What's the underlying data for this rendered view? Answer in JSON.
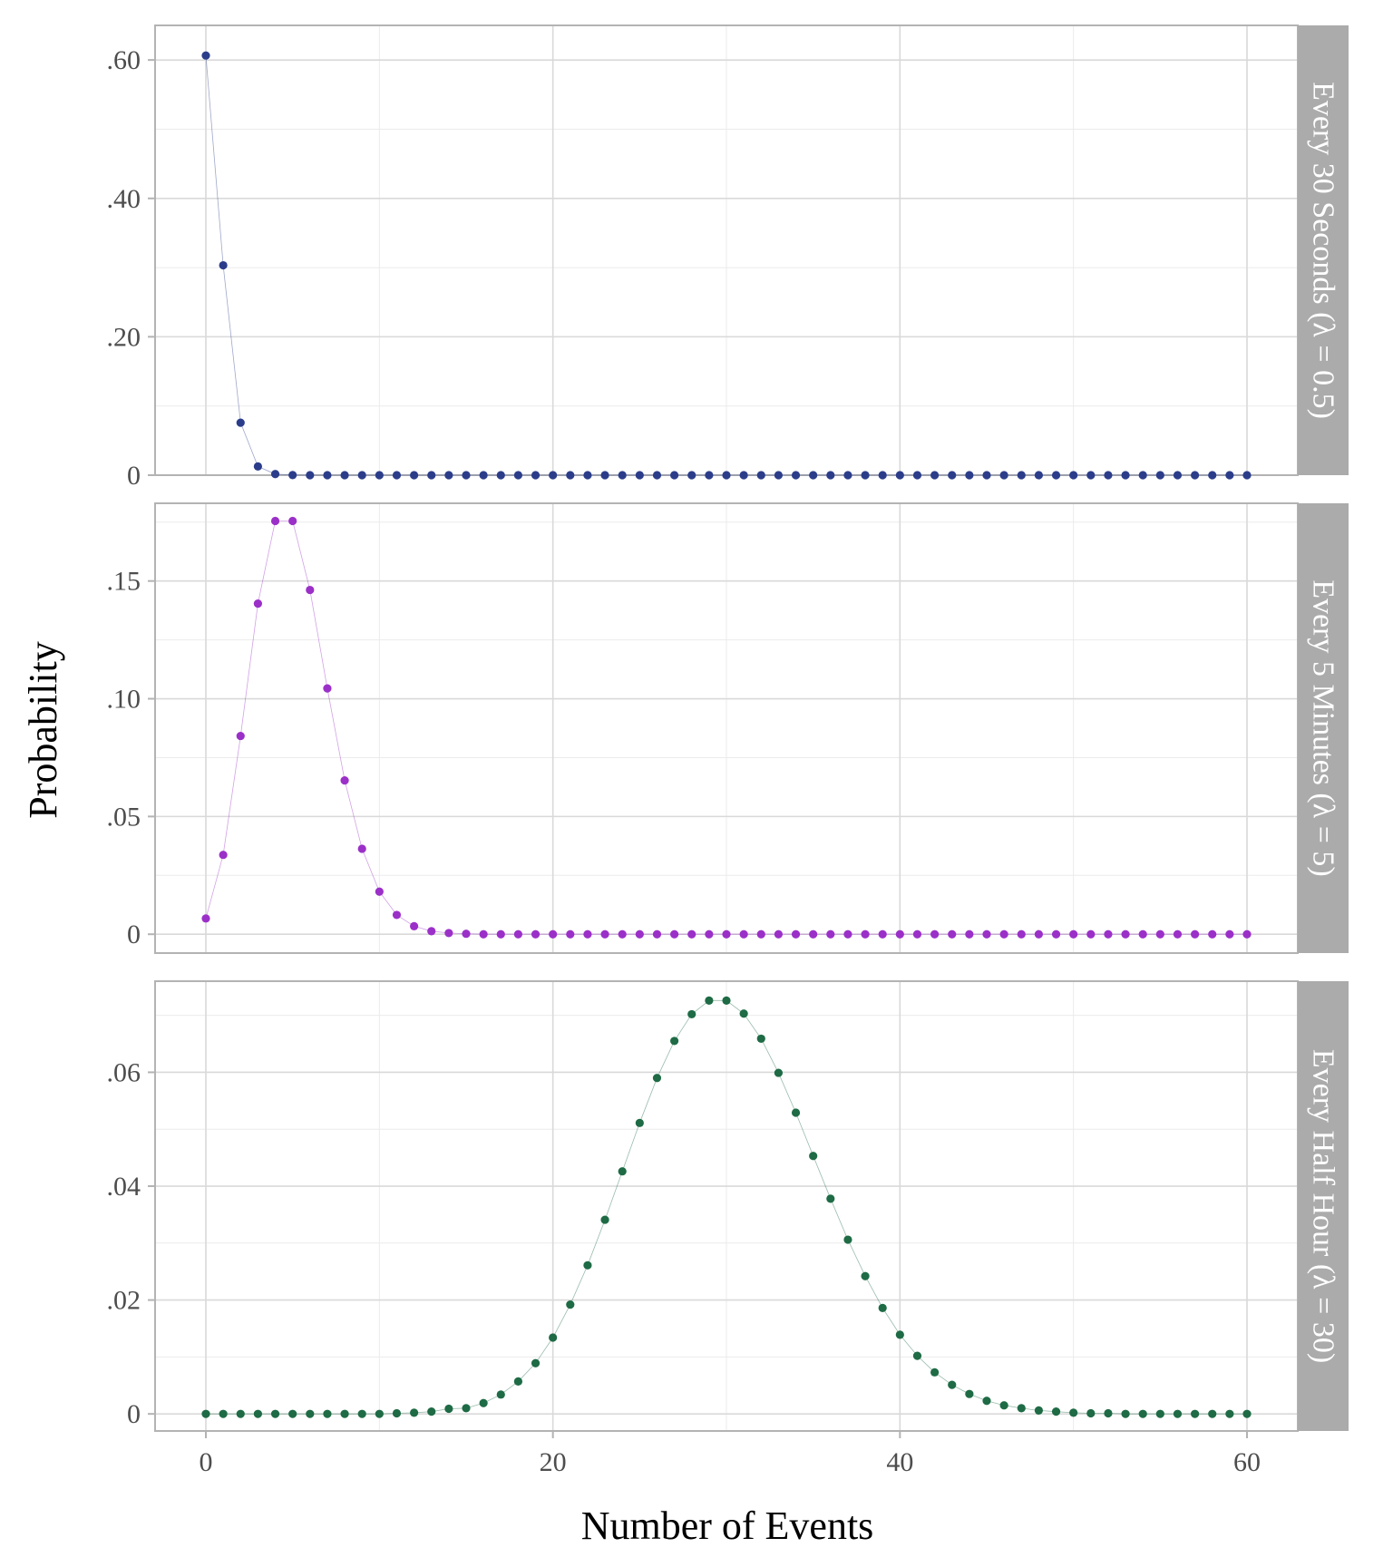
{
  "chart_data": {
    "type": "scatter",
    "xlabel": "Number of Events",
    "ylabel": "Probability",
    "xlim": [
      0,
      60
    ],
    "x_ticks": [
      {
        "value": 0,
        "label": "0"
      },
      {
        "value": 20,
        "label": "20"
      },
      {
        "value": 40,
        "label": "40"
      },
      {
        "value": 60,
        "label": "60"
      }
    ],
    "grid": true,
    "connecting_line": true,
    "panels": [
      {
        "strip_label": "Every 30 Seconds (λ = 0.5)",
        "color": "#2b3d8a",
        "ylim": [
          0,
          0.65
        ],
        "y_ticks": [
          {
            "value": 0,
            "label": "0"
          },
          {
            "value": 0.2,
            "label": ".20"
          },
          {
            "value": 0.4,
            "label": ".40"
          },
          {
            "value": 0.6,
            "label": ".60"
          }
        ],
        "x": [
          0,
          1,
          2,
          3,
          4,
          5,
          6,
          7,
          8,
          9,
          10,
          11,
          12,
          13,
          14,
          15,
          16,
          17,
          18,
          19,
          20,
          21,
          22,
          23,
          24,
          25,
          26,
          27,
          28,
          29,
          30,
          31,
          32,
          33,
          34,
          35,
          36,
          37,
          38,
          39,
          40,
          41,
          42,
          43,
          44,
          45,
          46,
          47,
          48,
          49,
          50,
          51,
          52,
          53,
          54,
          55,
          56,
          57,
          58,
          59,
          60
        ],
        "y": [
          0.6065,
          0.3033,
          0.0758,
          0.0126,
          0.0016,
          0.0002,
          0,
          0,
          0,
          0,
          0,
          0,
          0,
          0,
          0,
          0,
          0,
          0,
          0,
          0,
          0,
          0,
          0,
          0,
          0,
          0,
          0,
          0,
          0,
          0,
          0,
          0,
          0,
          0,
          0,
          0,
          0,
          0,
          0,
          0,
          0,
          0,
          0,
          0,
          0,
          0,
          0,
          0,
          0,
          0,
          0,
          0,
          0,
          0,
          0,
          0,
          0,
          0,
          0,
          0,
          0
        ]
      },
      {
        "strip_label": "Every 5 Minutes (λ = 5)",
        "color": "#9b30c8",
        "ylim": [
          -0.008,
          0.183
        ],
        "y_ticks": [
          {
            "value": 0,
            "label": "0"
          },
          {
            "value": 0.05,
            "label": ".05"
          },
          {
            "value": 0.1,
            "label": ".10"
          },
          {
            "value": 0.15,
            "label": ".15"
          }
        ],
        "x": [
          0,
          1,
          2,
          3,
          4,
          5,
          6,
          7,
          8,
          9,
          10,
          11,
          12,
          13,
          14,
          15,
          16,
          17,
          18,
          19,
          20,
          21,
          22,
          23,
          24,
          25,
          26,
          27,
          28,
          29,
          30,
          31,
          32,
          33,
          34,
          35,
          36,
          37,
          38,
          39,
          40,
          41,
          42,
          43,
          44,
          45,
          46,
          47,
          48,
          49,
          50,
          51,
          52,
          53,
          54,
          55,
          56,
          57,
          58,
          59,
          60
        ],
        "y": [
          0.0067,
          0.0337,
          0.0842,
          0.1404,
          0.1755,
          0.1755,
          0.1462,
          0.1044,
          0.0653,
          0.0363,
          0.0181,
          0.0082,
          0.0034,
          0.0013,
          0.0005,
          0.0002,
          0,
          0,
          0,
          0,
          0,
          0,
          0,
          0,
          0,
          0,
          0,
          0,
          0,
          0,
          0,
          0,
          0,
          0,
          0,
          0,
          0,
          0,
          0,
          0,
          0,
          0,
          0,
          0,
          0,
          0,
          0,
          0,
          0,
          0,
          0,
          0,
          0,
          0,
          0,
          0,
          0,
          0,
          0,
          0,
          0
        ]
      },
      {
        "strip_label": "Every Half Hour (λ = 30)",
        "color": "#1e6b45",
        "ylim": [
          -0.003,
          0.076
        ],
        "y_ticks": [
          {
            "value": 0,
            "label": "0"
          },
          {
            "value": 0.02,
            "label": ".02"
          },
          {
            "value": 0.04,
            "label": ".04"
          },
          {
            "value": 0.06,
            "label": ".06"
          }
        ],
        "x": [
          0,
          1,
          2,
          3,
          4,
          5,
          6,
          7,
          8,
          9,
          10,
          11,
          12,
          13,
          14,
          15,
          16,
          17,
          18,
          19,
          20,
          21,
          22,
          23,
          24,
          25,
          26,
          27,
          28,
          29,
          30,
          31,
          32,
          33,
          34,
          35,
          36,
          37,
          38,
          39,
          40,
          41,
          42,
          43,
          44,
          45,
          46,
          47,
          48,
          49,
          50,
          51,
          52,
          53,
          54,
          55,
          56,
          57,
          58,
          59,
          60
        ],
        "y": [
          0,
          0,
          0,
          0,
          0,
          0,
          0,
          0,
          0,
          0,
          0,
          0.0001,
          0.0002,
          0.0004,
          0.0009,
          0.001,
          0.0019,
          0.0034,
          0.0057,
          0.0089,
          0.0134,
          0.0192,
          0.0261,
          0.0341,
          0.0426,
          0.0511,
          0.059,
          0.0655,
          0.0702,
          0.0726,
          0.0726,
          0.0703,
          0.0659,
          0.0599,
          0.0529,
          0.0453,
          0.0378,
          0.0306,
          0.0242,
          0.0186,
          0.0139,
          0.0102,
          0.0073,
          0.0051,
          0.0035,
          0.0023,
          0.0015,
          0.001,
          0.0006,
          0.0004,
          0.0002,
          0.0001,
          0.0001,
          0,
          0,
          0,
          0,
          0,
          0,
          0,
          0
        ]
      }
    ]
  }
}
